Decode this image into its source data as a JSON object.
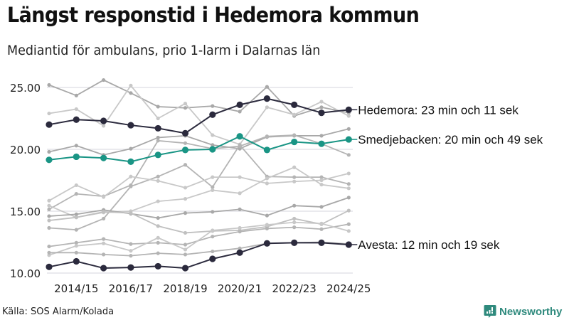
{
  "header": {
    "title": "Längst responstid i Hedemora kommun",
    "subtitle": "Mediantid för ambulans, prio 1-larm i Dalarnas län"
  },
  "footer": {
    "source": "Källa: SOS Alarm/Kolada",
    "brand": "Newsworthy",
    "brand_color": "#2f8a7d"
  },
  "chart_data": {
    "type": "line",
    "title": "Längst responstid i Hedemora kommun",
    "subtitle": "Mediantid för ambulans, prio 1-larm i Dalarnas län",
    "xlabel": "",
    "ylabel": "",
    "ylim": [
      10,
      25.5
    ],
    "yticks": [
      10,
      15,
      20,
      25
    ],
    "ytick_labels": [
      "10.00",
      "15.00",
      "20.00",
      "25.00"
    ],
    "grid": "horizontal",
    "x": [
      "2013/14",
      "2014/15",
      "2015/16",
      "2016/17",
      "2017/18",
      "2018/19",
      "2019/20",
      "2020/21",
      "2021/22",
      "2022/23",
      "2023/24",
      "2024/25"
    ],
    "xtick_labels": [
      "2014/15",
      "2016/17",
      "2018/19",
      "2020/21",
      "2022/23",
      "2024/25"
    ],
    "highlight_series": [
      {
        "name": "Hedemora",
        "color": "#2b2a3d",
        "label": "Hedemora: 23 min och 11 sek",
        "values": [
          22.0,
          22.4,
          22.3,
          21.95,
          21.7,
          21.3,
          22.8,
          23.6,
          24.1,
          23.6,
          22.95,
          23.2
        ]
      },
      {
        "name": "Smedjebacken",
        "color": "#1a9585",
        "label": "Smedjebacken: 20 min och 49 sek",
        "values": [
          19.15,
          19.4,
          19.3,
          19.0,
          19.55,
          19.95,
          20.0,
          21.05,
          19.95,
          20.6,
          20.45,
          20.8
        ]
      },
      {
        "name": "Avesta",
        "color": "#2b2a3d",
        "label": "Avesta: 12 min och 19 sek",
        "values": [
          10.5,
          10.95,
          10.4,
          10.45,
          10.55,
          10.4,
          11.15,
          11.65,
          12.4,
          12.45,
          12.45,
          12.3
        ]
      }
    ],
    "background_series": [
      {
        "color": "#a8a8a8",
        "values": [
          25.2,
          24.35,
          25.6,
          24.55,
          23.45,
          23.35,
          23.5,
          23.05,
          25.05,
          22.7,
          23.4,
          22.95
        ]
      },
      {
        "color": "#c8c8c8",
        "values": [
          22.9,
          23.25,
          21.9,
          25.15,
          22.5,
          23.7,
          21.15,
          20.4,
          23.4,
          22.8,
          23.85,
          22.7
        ]
      },
      {
        "color": "#a8a8a8",
        "values": [
          19.8,
          20.3,
          19.55,
          20.05,
          20.95,
          21.1,
          20.35,
          20.05,
          21.0,
          21.1,
          21.1,
          21.65
        ]
      },
      {
        "color": "#b4b4b4",
        "values": [
          15.15,
          16.4,
          16.2,
          17.1,
          20.7,
          20.5,
          20.05,
          20.25,
          21.05,
          21.15,
          20.45,
          19.55
        ]
      },
      {
        "color": "#b4b4b4",
        "values": [
          13.65,
          13.5,
          14.4,
          17.0,
          17.8,
          18.75,
          16.95,
          20.35,
          17.8,
          17.75,
          17.75,
          17.2
        ]
      },
      {
        "color": "#c8c8c8",
        "values": [
          15.85,
          17.1,
          16.15,
          17.8,
          17.45,
          16.9,
          17.75,
          17.75,
          17.25,
          17.4,
          17.5,
          18.05
        ]
      },
      {
        "color": "#c8c8c8",
        "values": [
          15.45,
          14.5,
          14.9,
          15.0,
          15.8,
          16.0,
          16.7,
          16.45,
          17.65,
          18.55,
          17.15,
          16.85
        ]
      },
      {
        "color": "#a8a8a8",
        "values": [
          14.6,
          14.75,
          15.1,
          14.8,
          14.45,
          14.85,
          14.95,
          15.15,
          14.65,
          15.45,
          15.35,
          16.1
        ]
      },
      {
        "color": "#c0c0c0",
        "values": [
          14.25,
          14.5,
          14.95,
          14.85,
          13.8,
          13.25,
          13.4,
          13.45,
          13.75,
          14.4,
          13.95,
          15.05
        ]
      },
      {
        "color": "#b4b4b4",
        "values": [
          12.15,
          12.45,
          12.75,
          12.35,
          12.45,
          12.3,
          12.95,
          13.35,
          13.6,
          13.7,
          13.55,
          13.95
        ]
      },
      {
        "color": "#c8c8c8",
        "values": [
          11.45,
          12.2,
          12.4,
          11.8,
          12.85,
          11.9,
          13.45,
          13.65,
          13.9,
          14.1,
          14.0,
          13.4
        ]
      },
      {
        "color": "#b4b4b4",
        "values": [
          11.65,
          11.65,
          11.5,
          11.4,
          11.6,
          11.5,
          11.75,
          12.0,
          12.4,
          12.45,
          12.5,
          12.35
        ]
      }
    ]
  }
}
